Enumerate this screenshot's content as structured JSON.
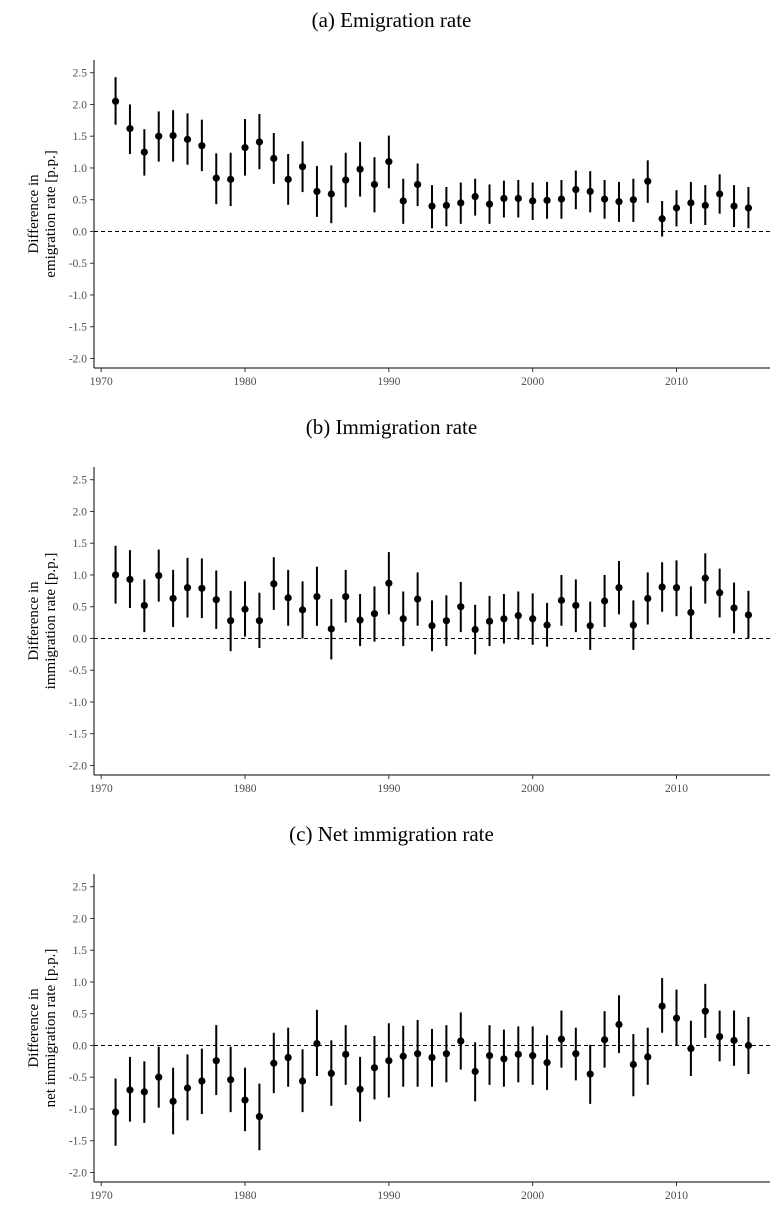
{
  "chart_data": [
    {
      "type": "scatter",
      "title": "(a) Emigration rate",
      "ylabel_lines": [
        "Difference in",
        "emigration rate [p.p.]"
      ],
      "xlim": [
        1969.5,
        2016.5
      ],
      "ylim": [
        -2.15,
        2.7
      ],
      "xticks": [
        1970,
        1980,
        1990,
        2000,
        2010
      ],
      "yticks": [
        2.5,
        2.0,
        1.5,
        1.0,
        0.5,
        0.0,
        -0.5,
        -1.0,
        -1.5,
        -2.0
      ],
      "ytick_labels": [
        "2.5",
        "2.0",
        "1.5",
        "1.0",
        "0.5",
        "0.0",
        "-0.5",
        "-1.0",
        "-1.5",
        "-2.0"
      ],
      "reference_line": 0,
      "x": [
        1971,
        1972,
        1973,
        1974,
        1975,
        1976,
        1977,
        1978,
        1979,
        1980,
        1981,
        1982,
        1983,
        1984,
        1985,
        1986,
        1987,
        1988,
        1989,
        1990,
        1991,
        1992,
        1993,
        1994,
        1995,
        1996,
        1997,
        1998,
        1999,
        2000,
        2001,
        2002,
        2003,
        2004,
        2005,
        2006,
        2007,
        2008,
        2009,
        2010,
        2011,
        2012,
        2013,
        2014,
        2015
      ],
      "y": [
        2.05,
        1.62,
        1.25,
        1.5,
        1.51,
        1.45,
        1.35,
        0.84,
        0.82,
        1.32,
        1.41,
        1.15,
        0.82,
        1.02,
        0.63,
        0.59,
        0.81,
        0.98,
        0.74,
        1.1,
        0.48,
        0.74,
        0.4,
        0.41,
        0.45,
        0.55,
        0.43,
        0.52,
        0.52,
        0.48,
        0.49,
        0.51,
        0.66,
        0.63,
        0.51,
        0.47,
        0.5,
        0.79,
        0.2,
        0.37,
        0.45,
        0.41,
        0.59,
        0.4,
        0.37
      ],
      "lower": [
        1.68,
        1.22,
        0.88,
        1.1,
        1.1,
        1.05,
        0.95,
        0.43,
        0.4,
        0.88,
        0.98,
        0.75,
        0.42,
        0.62,
        0.23,
        0.13,
        0.38,
        0.55,
        0.3,
        0.68,
        0.12,
        0.4,
        0.05,
        0.08,
        0.12,
        0.25,
        0.12,
        0.22,
        0.22,
        0.18,
        0.2,
        0.2,
        0.35,
        0.3,
        0.2,
        0.15,
        0.15,
        0.45,
        -0.08,
        0.08,
        0.12,
        0.1,
        0.28,
        0.07,
        0.05
      ],
      "upper": [
        2.43,
        2.0,
        1.61,
        1.89,
        1.91,
        1.86,
        1.76,
        1.23,
        1.24,
        1.77,
        1.85,
        1.55,
        1.22,
        1.42,
        1.03,
        1.04,
        1.24,
        1.41,
        1.17,
        1.51,
        0.83,
        1.07,
        0.73,
        0.7,
        0.77,
        0.83,
        0.74,
        0.8,
        0.81,
        0.77,
        0.78,
        0.81,
        0.96,
        0.95,
        0.81,
        0.78,
        0.83,
        1.12,
        0.48,
        0.65,
        0.78,
        0.73,
        0.9,
        0.73,
        0.7
      ]
    },
    {
      "type": "scatter",
      "title": "(b) Immigration rate",
      "ylabel_lines": [
        "Difference in",
        "immigration rate [p.p.]"
      ],
      "xlim": [
        1969.5,
        2016.5
      ],
      "ylim": [
        -2.15,
        2.7
      ],
      "xticks": [
        1970,
        1980,
        1990,
        2000,
        2010
      ],
      "yticks": [
        2.5,
        2.0,
        1.5,
        1.0,
        0.5,
        0.0,
        -0.5,
        -1.0,
        -1.5,
        -2.0
      ],
      "ytick_labels": [
        "2.5",
        "2.0",
        "1.5",
        "1.0",
        "0.5",
        "0.0",
        "-0.5",
        "-1.0",
        "-1.5",
        "-2.0"
      ],
      "reference_line": 0,
      "x": [
        1971,
        1972,
        1973,
        1974,
        1975,
        1976,
        1977,
        1978,
        1979,
        1980,
        1981,
        1982,
        1983,
        1984,
        1985,
        1986,
        1987,
        1988,
        1989,
        1990,
        1991,
        1992,
        1993,
        1994,
        1995,
        1996,
        1997,
        1998,
        1999,
        2000,
        2001,
        2002,
        2003,
        2004,
        2005,
        2006,
        2007,
        2008,
        2009,
        2010,
        2011,
        2012,
        2013,
        2014,
        2015
      ],
      "y": [
        1.0,
        0.93,
        0.52,
        0.99,
        0.63,
        0.8,
        0.79,
        0.61,
        0.28,
        0.46,
        0.28,
        0.86,
        0.64,
        0.45,
        0.66,
        0.15,
        0.66,
        0.29,
        0.39,
        0.87,
        0.31,
        0.62,
        0.2,
        0.28,
        0.5,
        0.14,
        0.27,
        0.31,
        0.36,
        0.31,
        0.21,
        0.6,
        0.52,
        0.2,
        0.59,
        0.8,
        0.21,
        0.63,
        0.81,
        0.8,
        0.41,
        0.95,
        0.72,
        0.48,
        0.37
      ],
      "lower": [
        0.55,
        0.48,
        0.1,
        0.58,
        0.18,
        0.33,
        0.32,
        0.15,
        -0.2,
        0.03,
        -0.15,
        0.45,
        0.2,
        0.0,
        0.2,
        -0.33,
        0.25,
        -0.12,
        -0.05,
        0.38,
        -0.12,
        0.2,
        -0.2,
        -0.12,
        0.1,
        -0.25,
        -0.12,
        -0.08,
        -0.02,
        -0.1,
        -0.13,
        0.2,
        0.1,
        -0.18,
        0.18,
        0.38,
        -0.18,
        0.22,
        0.42,
        0.35,
        0.0,
        0.55,
        0.33,
        0.08,
        0.0
      ],
      "upper": [
        1.46,
        1.39,
        0.93,
        1.4,
        1.08,
        1.27,
        1.26,
        1.07,
        0.75,
        0.9,
        0.72,
        1.28,
        1.08,
        0.9,
        1.13,
        0.62,
        1.08,
        0.7,
        0.82,
        1.36,
        0.74,
        1.04,
        0.6,
        0.68,
        0.89,
        0.53,
        0.67,
        0.7,
        0.74,
        0.71,
        0.56,
        1.0,
        0.93,
        0.58,
        1.0,
        1.22,
        0.6,
        1.04,
        1.2,
        1.23,
        0.82,
        1.34,
        1.1,
        0.88,
        0.75
      ]
    },
    {
      "type": "scatter",
      "title": "(c) Net immigration rate",
      "ylabel_lines": [
        "Difference in",
        "net immigration rate [p.p.]"
      ],
      "xlim": [
        1969.5,
        2016.5
      ],
      "ylim": [
        -2.15,
        2.7
      ],
      "xticks": [
        1970,
        1980,
        1990,
        2000,
        2010
      ],
      "yticks": [
        2.5,
        2.0,
        1.5,
        1.0,
        0.5,
        0.0,
        -0.5,
        -1.0,
        -1.5,
        -2.0
      ],
      "ytick_labels": [
        "2.5",
        "2.0",
        "1.5",
        "1.0",
        "0.5",
        "0.0",
        "-0.5",
        "-1.0",
        "-1.5",
        "-2.0"
      ],
      "reference_line": 0,
      "x": [
        1971,
        1972,
        1973,
        1974,
        1975,
        1976,
        1977,
        1978,
        1979,
        1980,
        1981,
        1982,
        1983,
        1984,
        1985,
        1986,
        1987,
        1988,
        1989,
        1990,
        1991,
        1992,
        1993,
        1994,
        1995,
        1996,
        1997,
        1998,
        1999,
        2000,
        2001,
        2002,
        2003,
        2004,
        2005,
        2006,
        2007,
        2008,
        2009,
        2010,
        2011,
        2012,
        2013,
        2014,
        2015
      ],
      "y": [
        -1.05,
        -0.7,
        -0.73,
        -0.5,
        -0.88,
        -0.67,
        -0.56,
        -0.24,
        -0.54,
        -0.86,
        -1.12,
        -0.28,
        -0.19,
        -0.56,
        0.03,
        -0.44,
        -0.14,
        -0.69,
        -0.35,
        -0.24,
        -0.17,
        -0.13,
        -0.19,
        -0.13,
        0.07,
        -0.41,
        -0.16,
        -0.21,
        -0.14,
        -0.16,
        -0.27,
        0.1,
        -0.13,
        -0.45,
        0.09,
        0.33,
        -0.3,
        -0.18,
        0.62,
        0.43,
        -0.05,
        0.54,
        0.14,
        0.08,
        0.0
      ],
      "lower": [
        -1.58,
        -1.2,
        -1.22,
        -0.98,
        -1.4,
        -1.18,
        -1.08,
        -0.78,
        -1.05,
        -1.35,
        -1.65,
        -0.75,
        -0.65,
        -1.05,
        -0.48,
        -0.95,
        -0.62,
        -1.2,
        -0.85,
        -0.82,
        -0.65,
        -0.65,
        -0.65,
        -0.58,
        -0.38,
        -0.88,
        -0.62,
        -0.65,
        -0.58,
        -0.62,
        -0.7,
        -0.35,
        -0.55,
        -0.92,
        -0.35,
        -0.12,
        -0.8,
        -0.62,
        0.2,
        0.0,
        -0.48,
        0.12,
        -0.25,
        -0.32,
        -0.45
      ],
      "upper": [
        -0.52,
        -0.18,
        -0.25,
        -0.02,
        -0.35,
        -0.14,
        -0.05,
        0.32,
        -0.02,
        -0.35,
        -0.6,
        0.2,
        0.28,
        -0.06,
        0.56,
        0.08,
        0.32,
        -0.18,
        0.15,
        0.35,
        0.31,
        0.4,
        0.26,
        0.32,
        0.52,
        0.05,
        0.32,
        0.25,
        0.3,
        0.3,
        0.16,
        0.55,
        0.28,
        0.01,
        0.54,
        0.79,
        0.18,
        0.28,
        1.06,
        0.88,
        0.39,
        0.97,
        0.55,
        0.55,
        0.45
      ]
    }
  ]
}
